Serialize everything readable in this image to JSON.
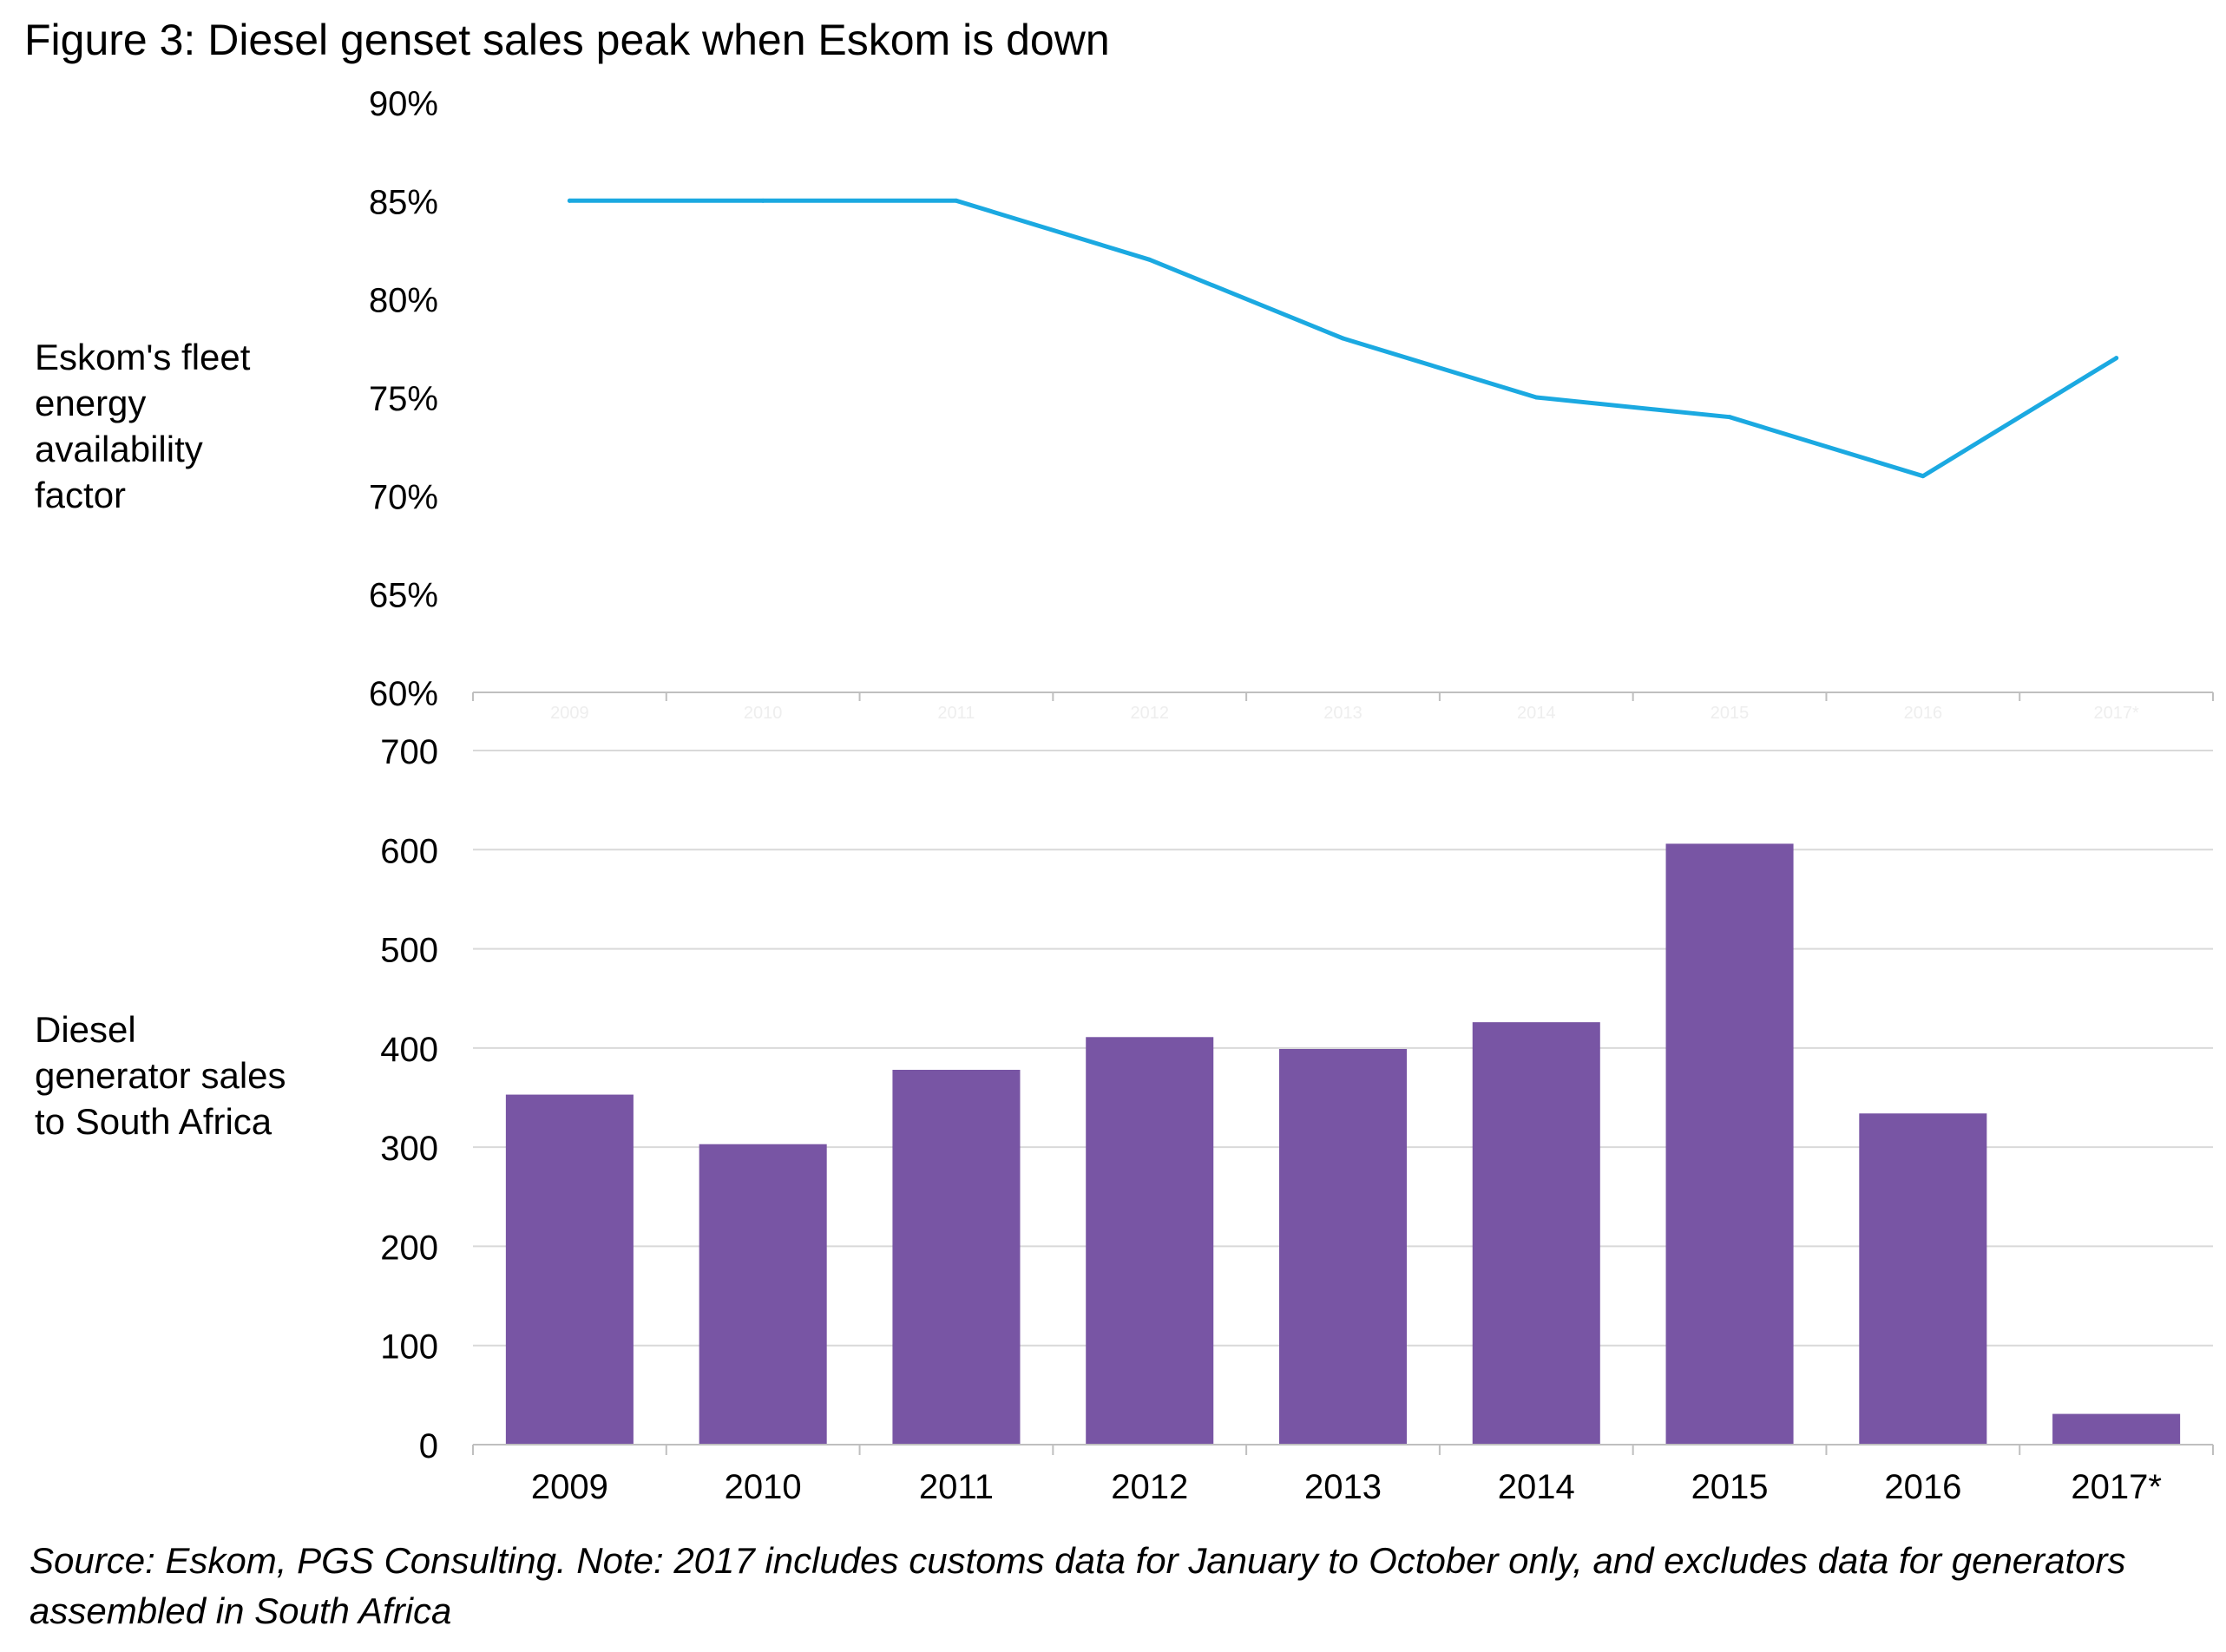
{
  "figure_title": "Figure 3: Diesel genset sales peak when Eskom is down",
  "top_axis_description": "Eskom's fleet\nenergy\navailability\nfactor",
  "bottom_axis_description": "Diesel\ngenerator sales\nto South Africa",
  "source_note": "Source: Eskom, PGS Consulting. Note: 2017 includes customs data for January to October only, and excludes data for generators assembled in South Africa",
  "colors": {
    "line": "#1BA9E1",
    "bar": "#7855A4",
    "gridline": "#D9D9D9",
    "axis": "#BFBFBF",
    "faint_label": "#EEEEEE"
  },
  "chart_data": [
    {
      "type": "line",
      "categories": [
        "2009",
        "2010",
        "2011",
        "2012",
        "2013",
        "2014",
        "2015",
        "2016",
        "2017*"
      ],
      "series": [
        {
          "values": [
            0.85,
            0.85,
            0.85,
            0.82,
            0.78,
            0.75,
            0.74,
            0.71,
            0.77
          ]
        }
      ],
      "ylim": [
        0.6,
        0.9
      ],
      "yticks": [
        "60%",
        "65%",
        "70%",
        "75%",
        "80%",
        "85%",
        "90%"
      ],
      "grid": false
    },
    {
      "type": "bar",
      "categories": [
        "2009",
        "2010",
        "2011",
        "2012",
        "2013",
        "2014",
        "2015",
        "2016",
        "2017*"
      ],
      "series": [
        {
          "values": [
            353,
            303,
            378,
            411,
            399,
            426,
            606,
            334,
            31
          ]
        }
      ],
      "ylim": [
        0,
        700
      ],
      "yticks": [
        "0",
        "100",
        "200",
        "300",
        "400",
        "500",
        "600",
        "700"
      ],
      "grid": true
    }
  ]
}
